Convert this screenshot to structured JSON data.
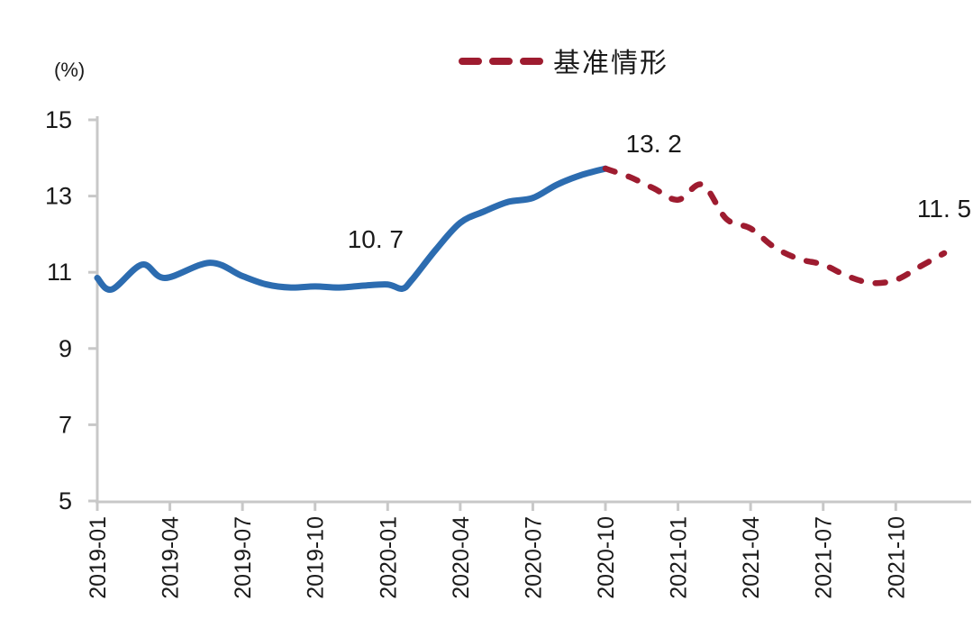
{
  "page": {
    "background": "#ffffff"
  },
  "chart_data": {
    "type": "line",
    "title": "",
    "y_axis_unit": "(%)",
    "ylim": [
      5,
      15
    ],
    "y_ticks": [
      15,
      13,
      11,
      9,
      7,
      5
    ],
    "x_axis": {
      "month_index_origin": "2019-01",
      "tick_interval_months": 3,
      "tick_labels": [
        "2019-01",
        "2019-04",
        "2019-07",
        "2019-10",
        "2020-01",
        "2020-04",
        "2020-07",
        "2020-10",
        "2021-01",
        "2021-04",
        "2021-07",
        "2021-10"
      ]
    },
    "grid": "off",
    "legend": [
      {
        "label": "基准情形",
        "style": "dashed",
        "color": "#9e1c30",
        "position": "top-center"
      }
    ],
    "axis_color": "#c8c8c8",
    "series": [
      {
        "id": "historical-solid-line",
        "style": "solid",
        "color": "#2c6cb0",
        "points": [
          [
            0,
            10.85
          ],
          [
            0.6,
            10.55
          ],
          [
            1.85,
            11.2
          ],
          [
            2.8,
            10.85
          ],
          [
            4.65,
            11.25
          ],
          [
            6,
            10.9
          ],
          [
            7,
            10.68
          ],
          [
            8,
            10.6
          ],
          [
            9,
            10.63
          ],
          [
            10,
            10.6
          ],
          [
            11,
            10.65
          ],
          [
            12,
            10.68
          ],
          [
            12.6,
            10.57
          ],
          [
            13,
            10.8
          ],
          [
            14,
            11.6
          ],
          [
            15,
            12.3
          ],
          [
            16,
            12.6
          ],
          [
            17,
            12.85
          ],
          [
            18,
            12.95
          ],
          [
            19,
            13.3
          ],
          [
            20,
            13.55
          ],
          [
            21,
            13.72
          ]
        ]
      },
      {
        "id": "baseline-scenario-dashed-line",
        "label": "基准情形",
        "style": "dashed",
        "color": "#9e1c30",
        "points": [
          [
            21,
            13.72
          ],
          [
            22,
            13.5
          ],
          [
            23,
            13.2
          ],
          [
            24,
            12.9
          ],
          [
            25,
            13.3
          ],
          [
            26,
            12.4
          ],
          [
            27,
            12.15
          ],
          [
            28,
            11.65
          ],
          [
            29,
            11.35
          ],
          [
            30,
            11.2
          ],
          [
            31,
            10.9
          ],
          [
            32,
            10.72
          ],
          [
            33,
            10.8
          ],
          [
            34,
            11.15
          ],
          [
            35,
            11.5
          ]
        ]
      }
    ],
    "annotations": [
      {
        "text": "10. 7",
        "value": 10.7,
        "month_index": 11.5
      },
      {
        "text": "13. 2",
        "value": 13.2,
        "month_index": 23
      },
      {
        "text": "11. 5",
        "value": 11.5,
        "month_index": 35
      }
    ]
  }
}
